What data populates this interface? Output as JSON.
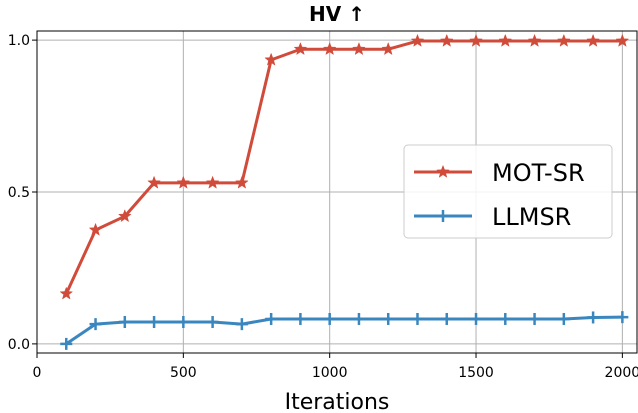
{
  "chart_data": {
    "type": "line",
    "title": "HV ↑",
    "xlabel": "Iterations",
    "ylabel": "",
    "xlim": [
      0,
      2050
    ],
    "ylim": [
      -0.03,
      1.03
    ],
    "x_ticks": [
      0,
      500,
      1000,
      1500,
      2000
    ],
    "y_ticks": [
      0.0,
      0.5,
      1.0
    ],
    "x_tick_labels": [
      "0",
      "500",
      "1000",
      "1500",
      "2000"
    ],
    "y_tick_labels": [
      "0.0",
      "0.5",
      "1.0"
    ],
    "grid": true,
    "legend_position": "center-right",
    "x": [
      100,
      200,
      300,
      400,
      500,
      600,
      700,
      800,
      900,
      1000,
      1100,
      1200,
      1300,
      1400,
      1500,
      1600,
      1700,
      1800,
      1900,
      2000
    ],
    "series": [
      {
        "name": "MOT-SR",
        "color": "#d14b3a",
        "marker": "star",
        "values": [
          0.165,
          0.375,
          0.42,
          0.53,
          0.53,
          0.53,
          0.53,
          0.935,
          0.97,
          0.97,
          0.97,
          0.97,
          0.997,
          0.997,
          0.997,
          0.997,
          0.997,
          0.997,
          0.997,
          0.997
        ]
      },
      {
        "name": "LLMSR",
        "color": "#3a87bf",
        "marker": "plus",
        "values": [
          0.0,
          0.065,
          0.072,
          0.072,
          0.072,
          0.072,
          0.065,
          0.082,
          0.082,
          0.082,
          0.082,
          0.082,
          0.082,
          0.082,
          0.082,
          0.082,
          0.082,
          0.082,
          0.087,
          0.088
        ]
      }
    ]
  }
}
